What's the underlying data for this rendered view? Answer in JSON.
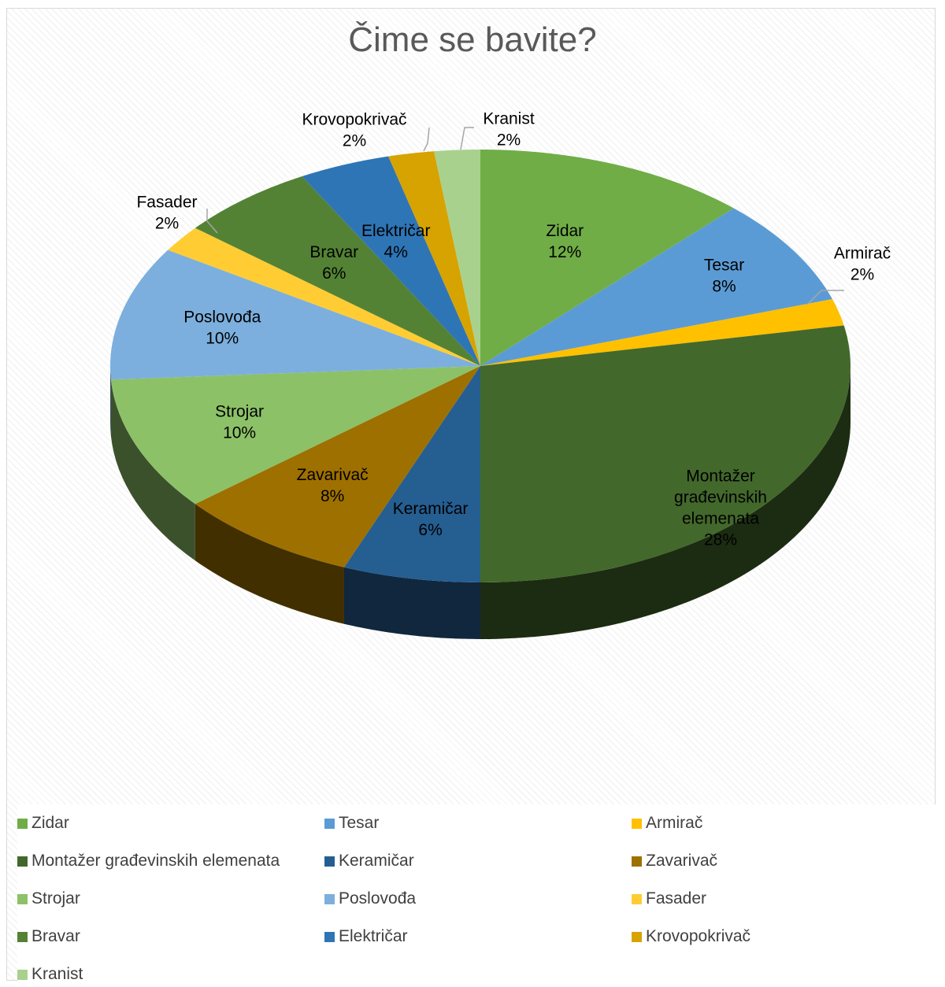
{
  "chart_data": {
    "type": "pie",
    "title": "Čime se bavite?",
    "categories": [
      "Zidar",
      "Tesar",
      "Armirač",
      "Montažer građevinskih elemenata",
      "Keramičar",
      "Zavarivač",
      "Strojar",
      "Poslovođa",
      "Fasader",
      "Bravar",
      "Električar",
      "Krovopokrivač",
      "Kranist"
    ],
    "values": [
      12,
      8,
      2,
      28,
      6,
      8,
      10,
      10,
      2,
      6,
      4,
      2,
      2
    ],
    "value_labels": [
      "12%",
      "8%",
      "2%",
      "28%",
      "6%",
      "8%",
      "10%",
      "10%",
      "2%",
      "6%",
      "4%",
      "2%",
      "2%"
    ],
    "colors": [
      "#70ad47",
      "#5b9bd5",
      "#ffc000",
      "#43682b",
      "#255e91",
      "#9e7000",
      "#8cc168",
      "#7cafdd",
      "#ffcd33",
      "#548235",
      "#2e75b6",
      "#d6a300",
      "#a9d18e"
    ],
    "legend_position": "bottom",
    "three_d": true
  }
}
